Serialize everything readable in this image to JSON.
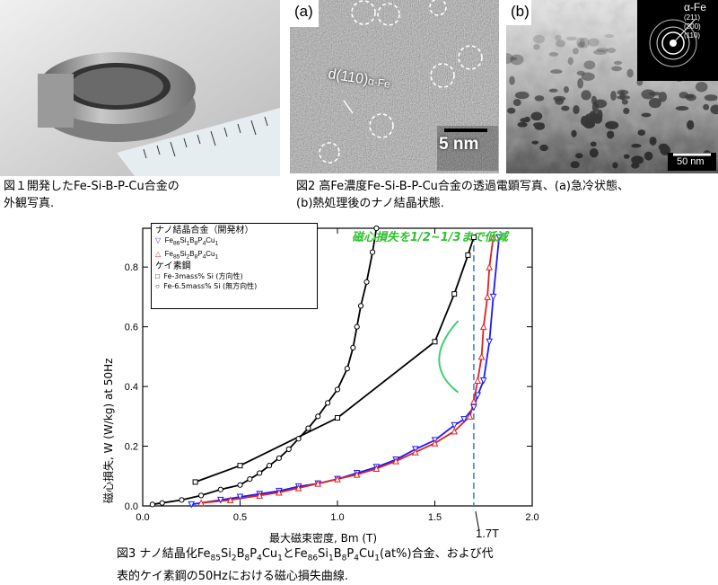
{
  "fig1": {
    "caption_line1": "図１開発したFe-Si-B-P-Cu合金の",
    "caption_line2": "外観写真.",
    "colors": {
      "tape": "#8a8a8a",
      "ruler": "#e8eef2",
      "bg": "#d6d6d6"
    }
  },
  "fig2": {
    "panel_a_label": "(a)",
    "panel_b_label": "(b)",
    "lattice_label": "d(110)",
    "lattice_sub": "α-Fe",
    "scale_a": "5 nm",
    "scale_b": "50 nm",
    "saed_title": "α-Fe",
    "saed_rings": [
      "(211)",
      "(200)",
      "(110)"
    ],
    "caption_line1": "図2 高Fe濃度Fe-Si-B-P-Cu合金の透過電顕写真、(a)急冷状態、",
    "caption_line2": "(b)熱処理後のナノ結晶状態."
  },
  "fig3": {
    "legend_group1": "ナノ結晶合金（開発材）",
    "legend_group2": "ケイ素鋼",
    "legend_s3": "Fe-3mass% Si (方向性)",
    "legend_s4": "Fe-6.5mass% Si (無方向性)",
    "annotation": "磁心損失を1/2~1/3まで低減",
    "marker_label": "1.7T",
    "ylabel": "磁心損失, W (W/kg) at 50Hz",
    "xlabel": "最大磁束密度, Bm (T)",
    "caption_line2": "表的ケイ素鋼の50Hzにおける磁心損失曲線.",
    "caption_parts": [
      "図3 ナノ結晶化Fe",
      "85",
      "Si",
      "2",
      "B",
      "8",
      "P",
      "4",
      "Cu",
      "1",
      "とFe",
      "86",
      "Si",
      "1",
      "B",
      "8",
      "P",
      "4",
      "Cu",
      "1",
      "(at%)合金、および代"
    ]
  },
  "chart_data": {
    "type": "scatter",
    "xlim": [
      0.0,
      2.0
    ],
    "ylim": [
      0.0,
      0.93
    ],
    "xticks": [
      "0.0",
      "0.5",
      "1.0",
      "1.5",
      "2.0"
    ],
    "yticks": [
      "0.0",
      "0.2",
      "0.4",
      "0.6",
      "0.8"
    ],
    "reference_x": 1.7,
    "series": [
      {
        "name_parts": [
          "Fe",
          "86",
          "Si",
          "1",
          "B",
          "8",
          "P",
          "4",
          "Cu",
          "1"
        ],
        "color": "#1a1aff",
        "marker": "triangle-down",
        "points": [
          [
            0.25,
            0.005
          ],
          [
            0.4,
            0.02
          ],
          [
            0.5,
            0.03
          ],
          [
            0.6,
            0.04
          ],
          [
            0.7,
            0.05
          ],
          [
            0.8,
            0.065
          ],
          [
            0.9,
            0.075
          ],
          [
            1.0,
            0.09
          ],
          [
            1.1,
            0.11
          ],
          [
            1.2,
            0.13
          ],
          [
            1.3,
            0.155
          ],
          [
            1.4,
            0.19
          ],
          [
            1.5,
            0.22
          ],
          [
            1.6,
            0.27
          ],
          [
            1.65,
            0.29
          ],
          [
            1.7,
            0.33
          ],
          [
            1.72,
            0.37
          ],
          [
            1.75,
            0.42
          ],
          [
            1.78,
            0.55
          ],
          [
            1.8,
            0.7
          ],
          [
            1.83,
            0.9
          ]
        ]
      },
      {
        "name_parts": [
          "Fe",
          "85",
          "Si",
          "2",
          "B",
          "8",
          "P",
          "4",
          "Cu",
          "1"
        ],
        "color": "#e02020",
        "marker": "triangle-up",
        "points": [
          [
            0.3,
            0.01
          ],
          [
            0.45,
            0.02
          ],
          [
            0.6,
            0.035
          ],
          [
            0.7,
            0.045
          ],
          [
            0.8,
            0.06
          ],
          [
            0.9,
            0.075
          ],
          [
            1.0,
            0.09
          ],
          [
            1.1,
            0.105
          ],
          [
            1.2,
            0.125
          ],
          [
            1.3,
            0.15
          ],
          [
            1.4,
            0.18
          ],
          [
            1.5,
            0.21
          ],
          [
            1.6,
            0.25
          ],
          [
            1.68,
            0.3
          ],
          [
            1.7,
            0.35
          ],
          [
            1.72,
            0.42
          ],
          [
            1.74,
            0.5
          ],
          [
            1.75,
            0.6
          ],
          [
            1.77,
            0.7
          ],
          [
            1.78,
            0.8
          ],
          [
            1.8,
            0.9
          ]
        ]
      },
      {
        "color": "#000000",
        "marker": "square",
        "points": [
          [
            0.27,
            0.08
          ],
          [
            0.5,
            0.135
          ],
          [
            1.0,
            0.295
          ],
          [
            1.5,
            0.55
          ],
          [
            1.6,
            0.71
          ],
          [
            1.67,
            0.84
          ],
          [
            1.7,
            0.9
          ]
        ]
      },
      {
        "color": "#000000",
        "marker": "circle",
        "points": [
          [
            0.05,
            0.005
          ],
          [
            0.1,
            0.01
          ],
          [
            0.2,
            0.02
          ],
          [
            0.3,
            0.035
          ],
          [
            0.4,
            0.055
          ],
          [
            0.5,
            0.07
          ],
          [
            0.55,
            0.09
          ],
          [
            0.6,
            0.11
          ],
          [
            0.65,
            0.135
          ],
          [
            0.7,
            0.16
          ],
          [
            0.75,
            0.19
          ],
          [
            0.8,
            0.225
          ],
          [
            0.85,
            0.26
          ],
          [
            0.9,
            0.3
          ],
          [
            0.95,
            0.345
          ],
          [
            1.0,
            0.39
          ],
          [
            1.05,
            0.46
          ],
          [
            1.08,
            0.53
          ],
          [
            1.1,
            0.6
          ],
          [
            1.12,
            0.67
          ],
          [
            1.15,
            0.75
          ],
          [
            1.18,
            0.85
          ],
          [
            1.2,
            0.93
          ]
        ]
      }
    ]
  }
}
